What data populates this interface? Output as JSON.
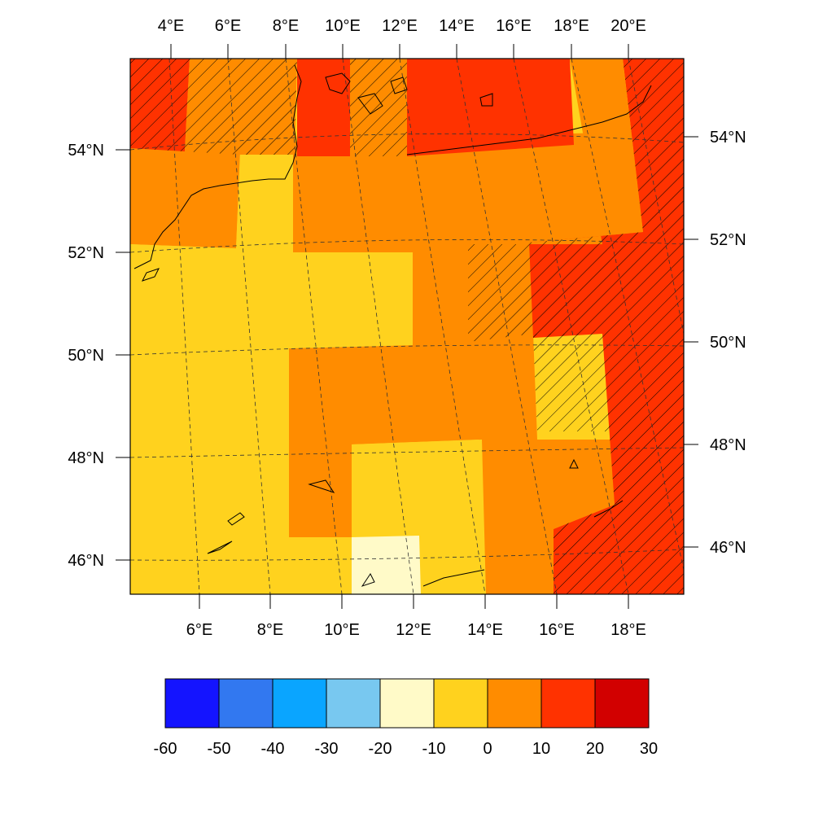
{
  "map": {
    "lon_range": [
      4.2,
      19.5
    ],
    "lat_range": [
      45.3,
      55.8
    ],
    "top_lon_labels": [
      "4°E",
      "6°E",
      "8°E",
      "10°E",
      "12°E",
      "14°E",
      "16°E",
      "18°E",
      "20°E"
    ],
    "bottom_lon_labels": [
      "6°E",
      "8°E",
      "10°E",
      "12°E",
      "14°E",
      "16°E",
      "18°E"
    ],
    "left_lat_labels": [
      "46°N",
      "48°N",
      "50°N",
      "52°N",
      "54°N"
    ],
    "right_lat_labels": [
      "46°N",
      "48°N",
      "50°N",
      "52°N",
      "54°N"
    ],
    "hatching": "significance-stippling-diagonal",
    "gridlines": "dashed",
    "coastline_color": "#000000"
  },
  "colorbar": {
    "tick_labels": [
      "-60",
      "-50",
      "-40",
      "-30",
      "-20",
      "-10",
      "0",
      "10",
      "20",
      "30"
    ],
    "colors": [
      "#1414ff",
      "#3278f0",
      "#0aa5ff",
      "#78c8f0",
      "#fffac8",
      "#ffd21e",
      "#ff8c00",
      "#ff3200",
      "#d20000"
    ],
    "bins": [
      [
        -60,
        -50
      ],
      [
        -50,
        -40
      ],
      [
        -40,
        -30
      ],
      [
        -30,
        -20
      ],
      [
        -20,
        -10
      ],
      [
        -10,
        0
      ],
      [
        0,
        10
      ],
      [
        10,
        20
      ],
      [
        20,
        30
      ]
    ]
  }
}
